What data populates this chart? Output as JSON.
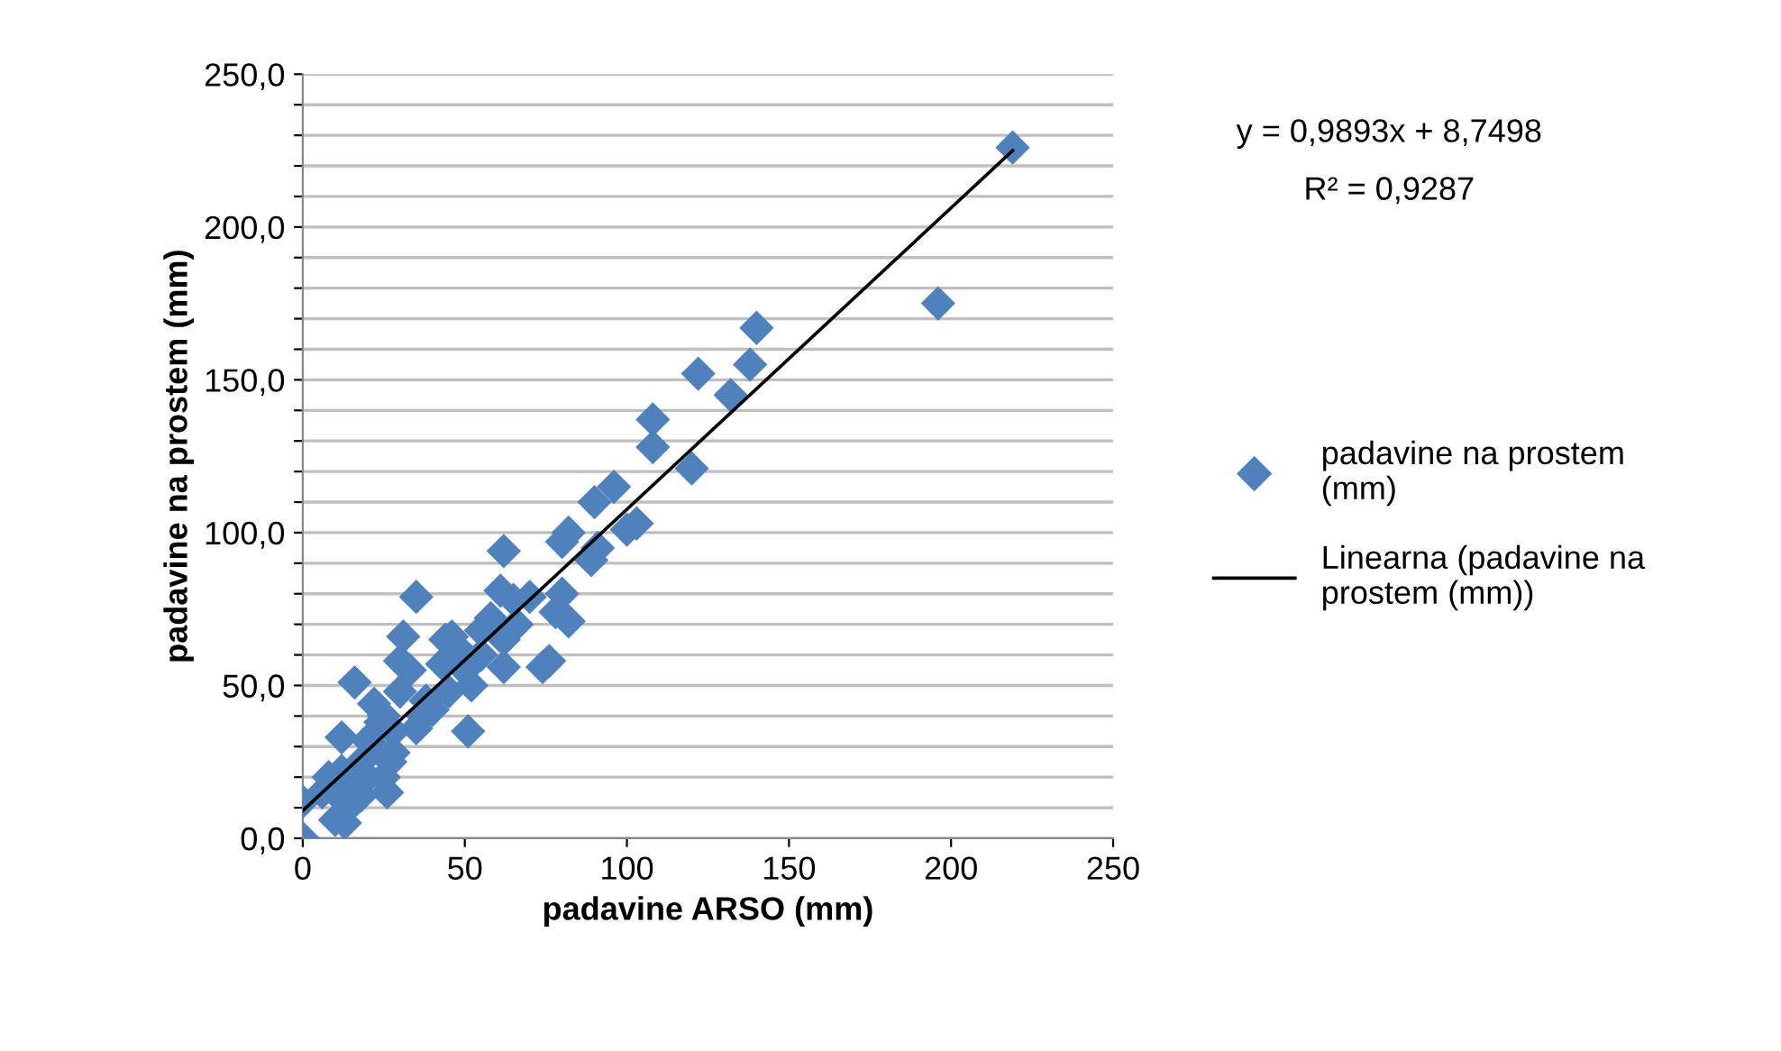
{
  "chart_data": {
    "type": "scatter",
    "xlabel": "padavine ARSO (mm)",
    "ylabel": "padavine na prostem (mm)",
    "annotations": [
      "y = 0,9893x + 8,7498",
      "R² = 0,9287"
    ],
    "xlim": [
      0,
      250
    ],
    "xticks": [
      0,
      50,
      100,
      150,
      200,
      250
    ],
    "ylim": [
      0,
      250
    ],
    "yticks": [
      {
        "value": 0,
        "label": "0,0"
      },
      {
        "value": 10,
        "label": null
      },
      {
        "value": 20,
        "label": null
      },
      {
        "value": 30,
        "label": null
      },
      {
        "value": 40,
        "label": null
      },
      {
        "value": 50,
        "label": "50,0"
      },
      {
        "value": 60,
        "label": null
      },
      {
        "value": 70,
        "label": null
      },
      {
        "value": 80,
        "label": null
      },
      {
        "value": 90,
        "label": null
      },
      {
        "value": 100,
        "label": "100,0"
      },
      {
        "value": 110,
        "label": null
      },
      {
        "value": 120,
        "label": null
      },
      {
        "value": 130,
        "label": null
      },
      {
        "value": 140,
        "label": null
      },
      {
        "value": 150,
        "label": "150,0"
      },
      {
        "value": 160,
        "label": null
      },
      {
        "value": 170,
        "label": null
      },
      {
        "value": 180,
        "label": null
      },
      {
        "value": 190,
        "label": null
      },
      {
        "value": 200,
        "label": "200,0"
      },
      {
        "value": 210,
        "label": null
      },
      {
        "value": 220,
        "label": null
      },
      {
        "value": 230,
        "label": null
      },
      {
        "value": 240,
        "label": null
      },
      {
        "value": 250,
        "label": "250,0"
      }
    ],
    "grid": "y",
    "legend": "right",
    "series": [
      {
        "name": "padavine na prostem (mm)",
        "marker": "diamond",
        "color": "#4f81bd",
        "x": [
          219,
          196,
          140,
          138,
          132,
          122,
          120,
          108,
          108,
          103,
          100,
          96,
          91,
          90,
          89,
          82,
          80,
          82,
          80,
          78,
          76,
          74,
          70,
          65,
          62,
          61,
          62,
          62,
          58,
          55,
          52,
          51,
          50,
          48,
          46,
          44,
          43,
          40,
          38,
          37,
          35,
          33,
          31,
          30,
          30,
          28,
          27,
          26,
          25,
          24,
          22,
          22,
          20,
          20,
          18,
          16,
          15,
          14,
          13,
          12,
          12,
          10,
          8,
          6,
          0,
          35,
          45,
          55,
          66,
          28,
          18,
          10,
          25,
          0
        ],
        "values": [
          226,
          175,
          167,
          155,
          145,
          152,
          121,
          137,
          128,
          103,
          101,
          115,
          95,
          110,
          91,
          100,
          97,
          71,
          80,
          74,
          58,
          56,
          79,
          78,
          94,
          81,
          56,
          65,
          72,
          68,
          50,
          35,
          55,
          62,
          66,
          65,
          57,
          42,
          45,
          40,
          79,
          55,
          66,
          58,
          48,
          35,
          25,
          15,
          40,
          38,
          30,
          44,
          20,
          32,
          25,
          51,
          18,
          10,
          5,
          33,
          22,
          15,
          20,
          15,
          12,
          36,
          48,
          60,
          70,
          28,
          14,
          6,
          20,
          0
        ]
      },
      {
        "name": "Linearna (padavine na prostem (mm))",
        "type": "line",
        "line_style": "solid",
        "color": "#000000",
        "x": [
          0,
          219
        ],
        "values": [
          9,
          225
        ]
      }
    ]
  }
}
